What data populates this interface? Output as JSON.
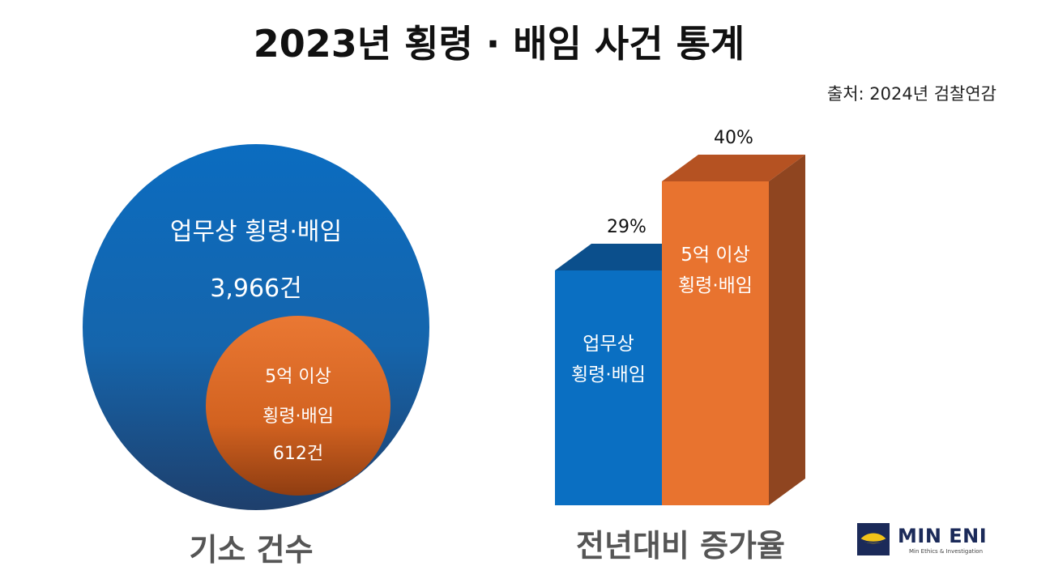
{
  "title": "2023년 횡령 · 배임 사건 통계",
  "source": "출처: 2024년 검찰연감",
  "chart_data": [
    {
      "type": "bubble",
      "xlabel": "기소 건수",
      "series": [
        {
          "name": "업무상 횡령·배임",
          "value": 3966,
          "value_label": "3,966건",
          "color": "#0b6cc0"
        },
        {
          "name": "5억 이상 횡령·배임",
          "name_lines": [
            "5억 이상",
            "횡령·배임"
          ],
          "value": 612,
          "value_label": "612건",
          "color": "#e8732f"
        }
      ]
    },
    {
      "type": "bar",
      "xlabel": "전년대비 증가율",
      "categories": [
        "업무상 횡령·배임",
        "5억 이상 횡령·배임"
      ],
      "category_lines": [
        [
          "업무상",
          "횡령·배임"
        ],
        [
          "5억 이상",
          "횡령·배임"
        ]
      ],
      "values": [
        29,
        40
      ],
      "value_labels": [
        "29%",
        "40%"
      ],
      "colors": [
        "#0a6fc2",
        "#e8732f"
      ]
    }
  ],
  "logo": {
    "name": "MIN ENI",
    "tagline": "Min Ethics & Investigation"
  }
}
